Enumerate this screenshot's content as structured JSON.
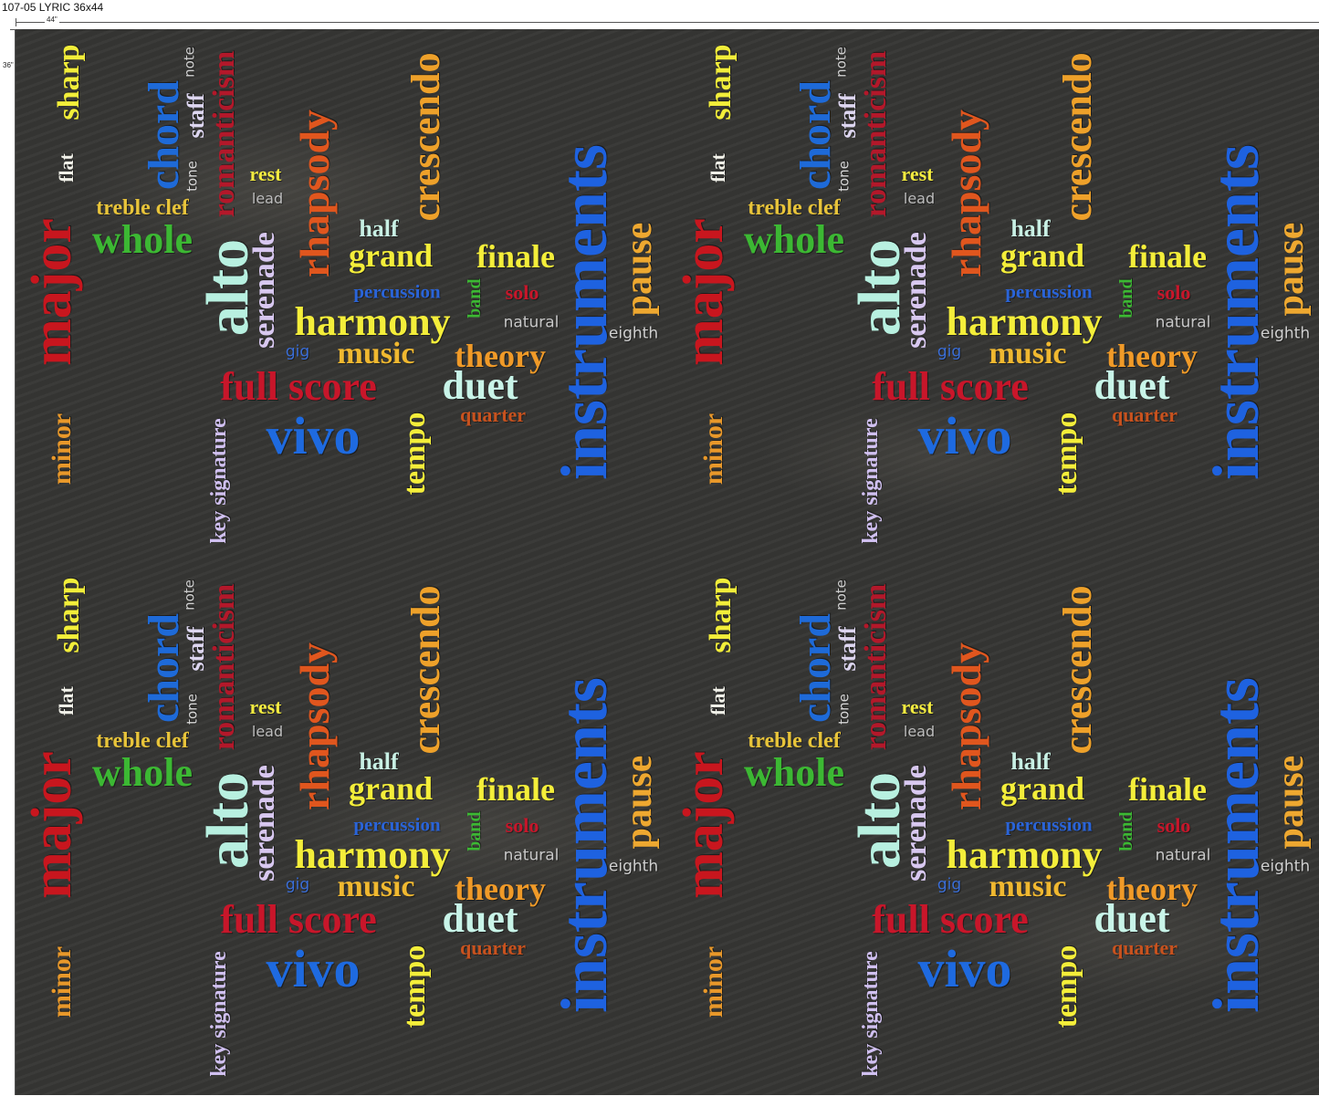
{
  "header": {
    "title": "107-05 LYRIC 36x44",
    "width_label": "44\"",
    "height_label": "36\""
  },
  "words": [
    {
      "text": "major",
      "color": "#c8161e",
      "orientation": "vertical"
    },
    {
      "text": "minor",
      "color": "#e8982a",
      "orientation": "vertical"
    },
    {
      "text": "flat",
      "color": "#f0f0e8",
      "orientation": "vertical"
    },
    {
      "text": "sharp",
      "color": "#f2ee3a",
      "orientation": "vertical"
    },
    {
      "text": "treble clef",
      "color": "#e8c43a",
      "orientation": "horizontal"
    },
    {
      "text": "whole",
      "color": "#3cb833",
      "orientation": "horizontal"
    },
    {
      "text": "chord",
      "color": "#1e6ad8",
      "orientation": "vertical"
    },
    {
      "text": "tone",
      "color": "#d8d8d8",
      "orientation": "vertical"
    },
    {
      "text": "staff",
      "color": "#ddd6f0",
      "orientation": "vertical"
    },
    {
      "text": "note",
      "color": "#d0d0d0",
      "orientation": "vertical"
    },
    {
      "text": "romanticism",
      "color": "#b3182a",
      "orientation": "vertical"
    },
    {
      "text": "rest",
      "color": "#f4ec40",
      "orientation": "horizontal"
    },
    {
      "text": "lead",
      "color": "#bdbdbd",
      "orientation": "horizontal"
    },
    {
      "text": "alto",
      "color": "#b8f0e0",
      "orientation": "vertical"
    },
    {
      "text": "serenade",
      "color": "#d8c8f0",
      "orientation": "vertical"
    },
    {
      "text": "rhapsody",
      "color": "#e0561e",
      "orientation": "vertical"
    },
    {
      "text": "crescendo",
      "color": "#eea12a",
      "orientation": "vertical"
    },
    {
      "text": "half",
      "color": "#c8f0e4",
      "orientation": "horizontal"
    },
    {
      "text": "grand",
      "color": "#f4ee3a",
      "orientation": "horizontal"
    },
    {
      "text": "finale",
      "color": "#f4ee3a",
      "orientation": "horizontal"
    },
    {
      "text": "percussion",
      "color": "#2a64d8",
      "orientation": "horizontal"
    },
    {
      "text": "band",
      "color": "#3cb833",
      "orientation": "vertical"
    },
    {
      "text": "solo",
      "color": "#c8162a",
      "orientation": "horizontal"
    },
    {
      "text": "harmony",
      "color": "#f4ee3a",
      "orientation": "horizontal"
    },
    {
      "text": "natural",
      "color": "#c8c8c8",
      "orientation": "horizontal"
    },
    {
      "text": "gig",
      "color": "#3a6ed8",
      "orientation": "horizontal"
    },
    {
      "text": "music",
      "color": "#f0b830",
      "orientation": "horizontal"
    },
    {
      "text": "theory",
      "color": "#f09a28",
      "orientation": "horizontal"
    },
    {
      "text": "full score",
      "color": "#c8162a",
      "orientation": "horizontal"
    },
    {
      "text": "duet",
      "color": "#c8f4e8",
      "orientation": "horizontal"
    },
    {
      "text": "quarter",
      "color": "#c8521e",
      "orientation": "horizontal"
    },
    {
      "text": "vivo",
      "color": "#1e6ae0",
      "orientation": "horizontal"
    },
    {
      "text": "tempo",
      "color": "#f4ee3a",
      "orientation": "vertical"
    },
    {
      "text": "key signature",
      "color": "#d0c0f0",
      "orientation": "vertical"
    },
    {
      "text": "instruments",
      "color": "#1e62e0",
      "orientation": "vertical"
    },
    {
      "text": "pause",
      "color": "#eea830",
      "orientation": "vertical"
    },
    {
      "text": "eighth",
      "color": "#d0d0d0",
      "orientation": "horizontal"
    }
  ]
}
